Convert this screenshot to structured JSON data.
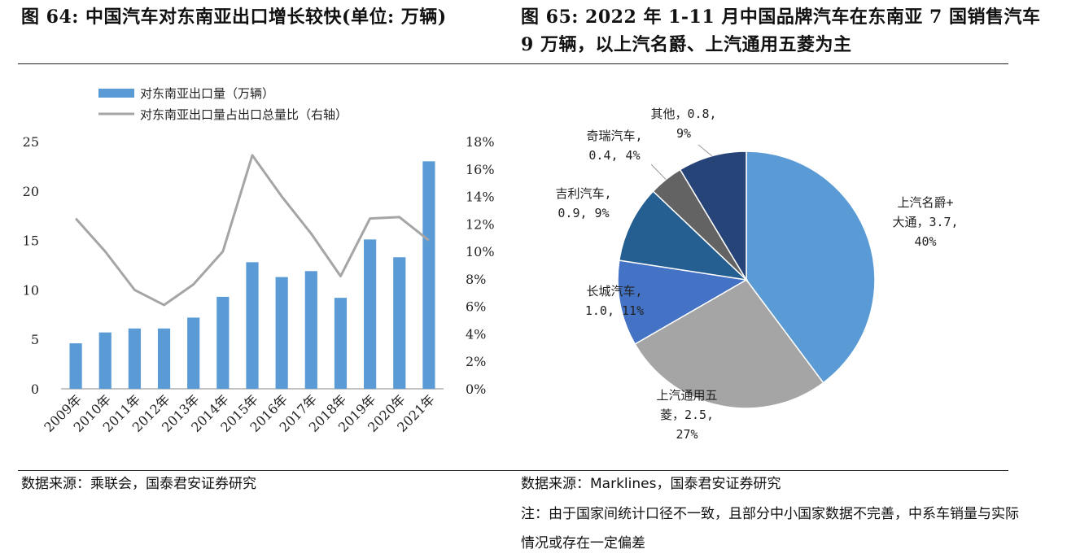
{
  "titles": {
    "left": "图 64: 中国汽车对东南亚出口增长较快(单位: 万辆)",
    "right": "图 65: 2022 年 1-11 月中国品牌汽车在东南亚 7 国销售汽车 9 万辆，以上汽名爵、上汽通用五菱为主"
  },
  "footer": {
    "source_left": "数据来源：乘联会，国泰君安证券研究",
    "source_right": "数据来源：Marklines，国泰君安证券研究",
    "note_right": "注：由于国家间统计口径不一致，且部分中小国家数据不完善，中系车销量与实际情况或存在一定偏差"
  },
  "colors": {
    "bar": "#5b9bd5",
    "line": "#a5a5a5",
    "pie": [
      "#5b9bd5",
      "#a5a5a5",
      "#4472c4",
      "#255e91",
      "#636363",
      "#264478"
    ]
  },
  "chart_data": [
    {
      "type": "bar",
      "categories": [
        "2009年",
        "2010年",
        "2011年",
        "2012年",
        "2013年",
        "2014年",
        "2015年",
        "2016年",
        "2017年",
        "2018年",
        "2019年",
        "2020年",
        "2021年"
      ],
      "series": [
        {
          "name": "对东南亚出口量（万辆）",
          "type": "bar",
          "axis": "left",
          "values": [
            4.6,
            5.7,
            6.1,
            6.1,
            7.2,
            9.3,
            12.8,
            11.3,
            11.9,
            9.2,
            15.1,
            13.3,
            23.0
          ]
        },
        {
          "name": "对东南亚出口量占出口总量比（右轴）",
          "type": "line",
          "axis": "right",
          "values": [
            12.4,
            10.0,
            7.2,
            6.1,
            7.6,
            10.0,
            17.0,
            14.0,
            11.3,
            8.2,
            12.4,
            12.5,
            10.8
          ]
        }
      ],
      "y_left": {
        "min": 0,
        "max": 25,
        "ticks": [
          "0",
          "5",
          "10",
          "15",
          "20",
          "25"
        ]
      },
      "y_right": {
        "min": 0,
        "max": 18,
        "ticks": [
          "0%",
          "2%",
          "4%",
          "6%",
          "8%",
          "10%",
          "12%",
          "14%",
          "16%",
          "18%"
        ]
      },
      "legend_position": "top-left",
      "grid": false
    },
    {
      "type": "pie",
      "slices": [
        {
          "lines": [
            "上汽名爵+",
            "大通，3.7,",
            "40%"
          ],
          "value": 3.7,
          "percent": 40
        },
        {
          "lines": [
            "上汽通用五",
            "菱，2.5,",
            "27%"
          ],
          "value": 2.5,
          "percent": 27
        },
        {
          "lines": [
            "长城汽车,",
            "1.0, 11%"
          ],
          "value": 1.0,
          "percent": 11
        },
        {
          "lines": [
            "吉利汽车,",
            "0.9, 9%"
          ],
          "value": 0.9,
          "percent": 9
        },
        {
          "lines": [
            "奇瑞汽车,",
            "0.4, 4%"
          ],
          "value": 0.4,
          "percent": 4
        },
        {
          "lines": [
            "其他，0.8,",
            "9%"
          ],
          "value": 0.8,
          "percent": 9
        }
      ]
    }
  ]
}
